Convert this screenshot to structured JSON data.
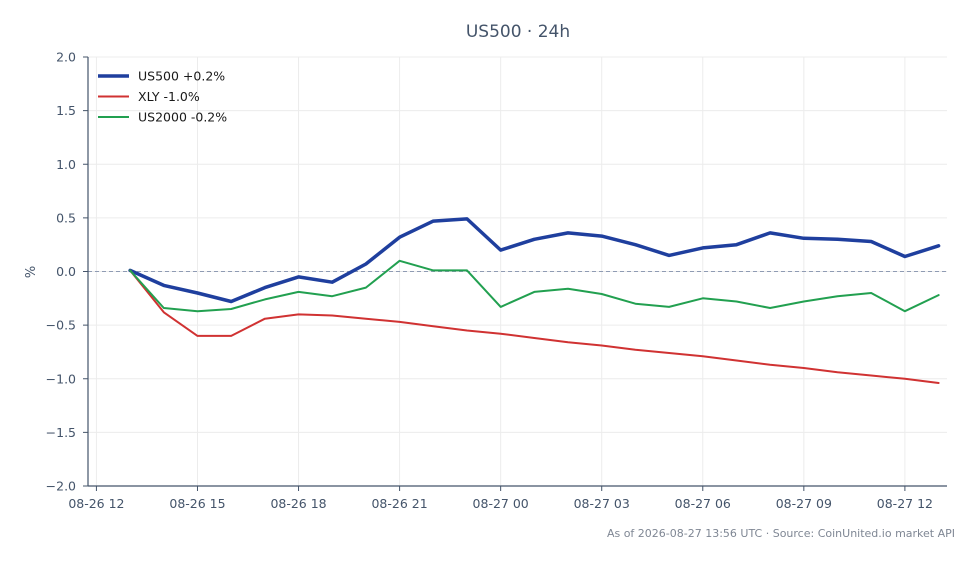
{
  "chart_data": {
    "type": "line",
    "title": "US500 · 24h",
    "xlabel": "",
    "ylabel": "%",
    "ylim": [
      -2.0,
      2.0
    ],
    "y_ticks": [
      2.0,
      1.5,
      1.0,
      0.5,
      0.0,
      -0.5,
      -1.0,
      -1.5,
      -2.0
    ],
    "y_tick_labels": [
      "2.0",
      "1.5",
      "1.0",
      "0.5",
      "0.0",
      "−0.5",
      "−1.0",
      "−1.5",
      "−2.0"
    ],
    "x_range": [
      "2026-08-26 11:45",
      "2026-08-27 13:15"
    ],
    "x_ticks": [
      "2026-08-26 12:00",
      "2026-08-26 15:00",
      "2026-08-26 18:00",
      "2026-08-26 21:00",
      "2026-08-27 00:00",
      "2026-08-27 03:00",
      "2026-08-27 06:00",
      "2026-08-27 09:00",
      "2026-08-27 12:00"
    ],
    "x_tick_labels": [
      "08-26 12",
      "08-26 15",
      "08-26 18",
      "08-26 21",
      "08-27 00",
      "08-27 03",
      "08-27 06",
      "08-27 09",
      "08-27 12"
    ],
    "x": [
      "2026-08-26 13:00",
      "2026-08-26 14:00",
      "2026-08-26 15:00",
      "2026-08-26 16:00",
      "2026-08-26 17:00",
      "2026-08-26 18:00",
      "2026-08-26 19:00",
      "2026-08-26 20:00",
      "2026-08-26 21:00",
      "2026-08-26 22:00",
      "2026-08-26 23:00",
      "2026-08-27 00:00",
      "2026-08-27 01:00",
      "2026-08-27 02:00",
      "2026-08-27 03:00",
      "2026-08-27 04:00",
      "2026-08-27 05:00",
      "2026-08-27 06:00",
      "2026-08-27 07:00",
      "2026-08-27 08:00",
      "2026-08-27 09:00",
      "2026-08-27 10:00",
      "2026-08-27 11:00",
      "2026-08-27 12:00",
      "2026-08-27 13:00"
    ],
    "series": [
      {
        "name": "US500 +0.2%",
        "color": "#1f3f9e",
        "width": 3.5,
        "values": [
          0.01,
          -0.13,
          -0.2,
          -0.28,
          -0.15,
          -0.05,
          -0.1,
          0.07,
          0.32,
          0.47,
          0.49,
          0.2,
          0.3,
          0.36,
          0.33,
          0.25,
          0.15,
          0.22,
          0.25,
          0.36,
          0.31,
          0.3,
          0.28,
          0.14,
          0.24
        ]
      },
      {
        "name": "XLY -1.0%",
        "color": "#d03232",
        "width": 2,
        "values": [
          0.01,
          -0.38,
          -0.6,
          -0.6,
          -0.44,
          -0.4,
          -0.41,
          -0.44,
          -0.47,
          -0.51,
          -0.55,
          -0.58,
          -0.62,
          -0.66,
          -0.69,
          -0.73,
          -0.76,
          -0.79,
          -0.83,
          -0.87,
          -0.9,
          -0.94,
          -0.97,
          -1.0,
          -1.04
        ]
      },
      {
        "name": "US2000 -0.2%",
        "color": "#22a050",
        "width": 2,
        "values": [
          0.01,
          -0.34,
          -0.37,
          -0.35,
          -0.26,
          -0.19,
          -0.23,
          -0.15,
          0.1,
          0.01,
          0.01,
          -0.33,
          -0.19,
          -0.16,
          -0.21,
          -0.3,
          -0.33,
          -0.25,
          -0.28,
          -0.34,
          -0.28,
          -0.23,
          -0.2,
          -0.37,
          -0.22
        ]
      }
    ],
    "reference_line": {
      "y": 0.0,
      "style": "dashed"
    },
    "grid": true,
    "legend_position": "top-left"
  },
  "caption": "As of 2026-08-27 13:56 UTC · Source: CoinUnited.io market API"
}
